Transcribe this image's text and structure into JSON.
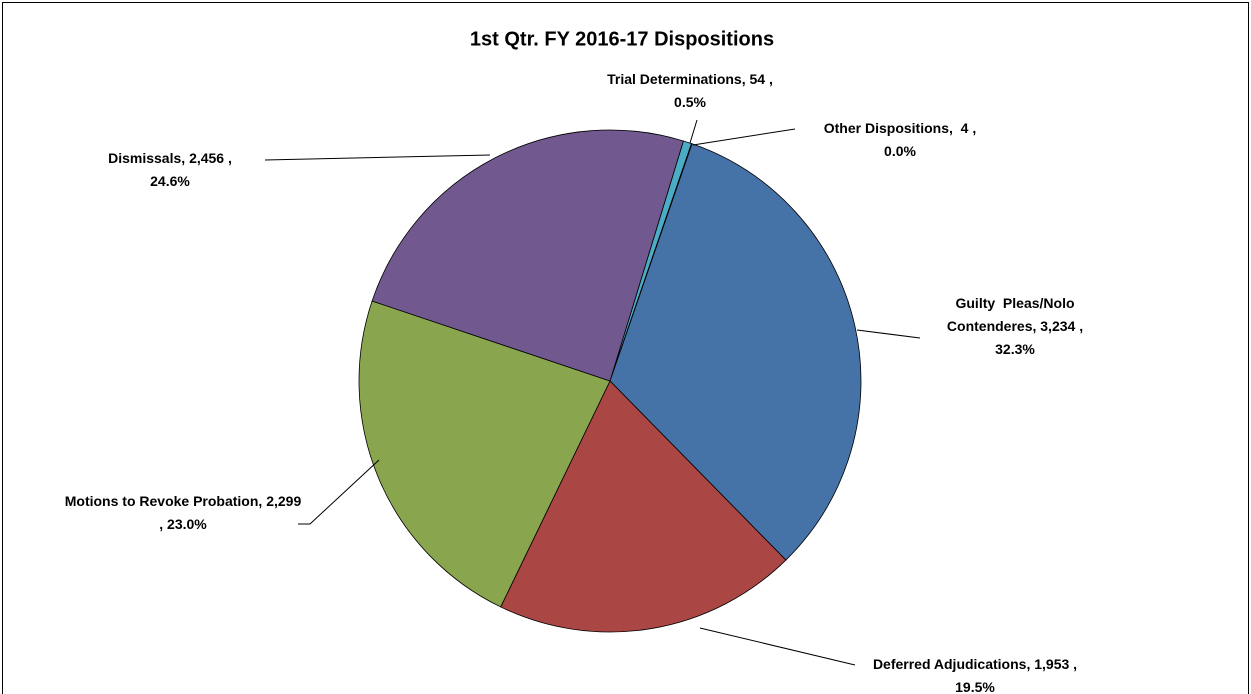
{
  "chart_data": {
    "type": "pie",
    "title": "1st Qtr. FY 2016-17 Dispositions",
    "categories": [
      "Trial Determinations,",
      "Other Dispositions, ",
      "Guilty  Pleas/Nolo Contenderes,",
      "Deferred Adjudications,",
      "Motions to Revoke Probation,",
      "Dismissals,"
    ],
    "values": [
      54,
      4,
      3234,
      1953,
      2299,
      2456
    ],
    "value_labels": [
      "54 ,",
      "4 ,",
      "3,234 ,",
      "1,953 ,",
      "2,299 ,",
      "2,456 ,"
    ],
    "percents": [
      0.5,
      0.0,
      32.3,
      19.5,
      23.0,
      24.6
    ],
    "percent_labels": [
      "0.5%",
      "0.0%",
      "32.3%",
      "19.5%",
      "23.0%",
      "24.6%"
    ],
    "colors": [
      "#4bacc6",
      "#3d8fa6",
      "#4572a7",
      "#aa4643",
      "#89a54e",
      "#71588f"
    ],
    "start_angle": 17
  }
}
